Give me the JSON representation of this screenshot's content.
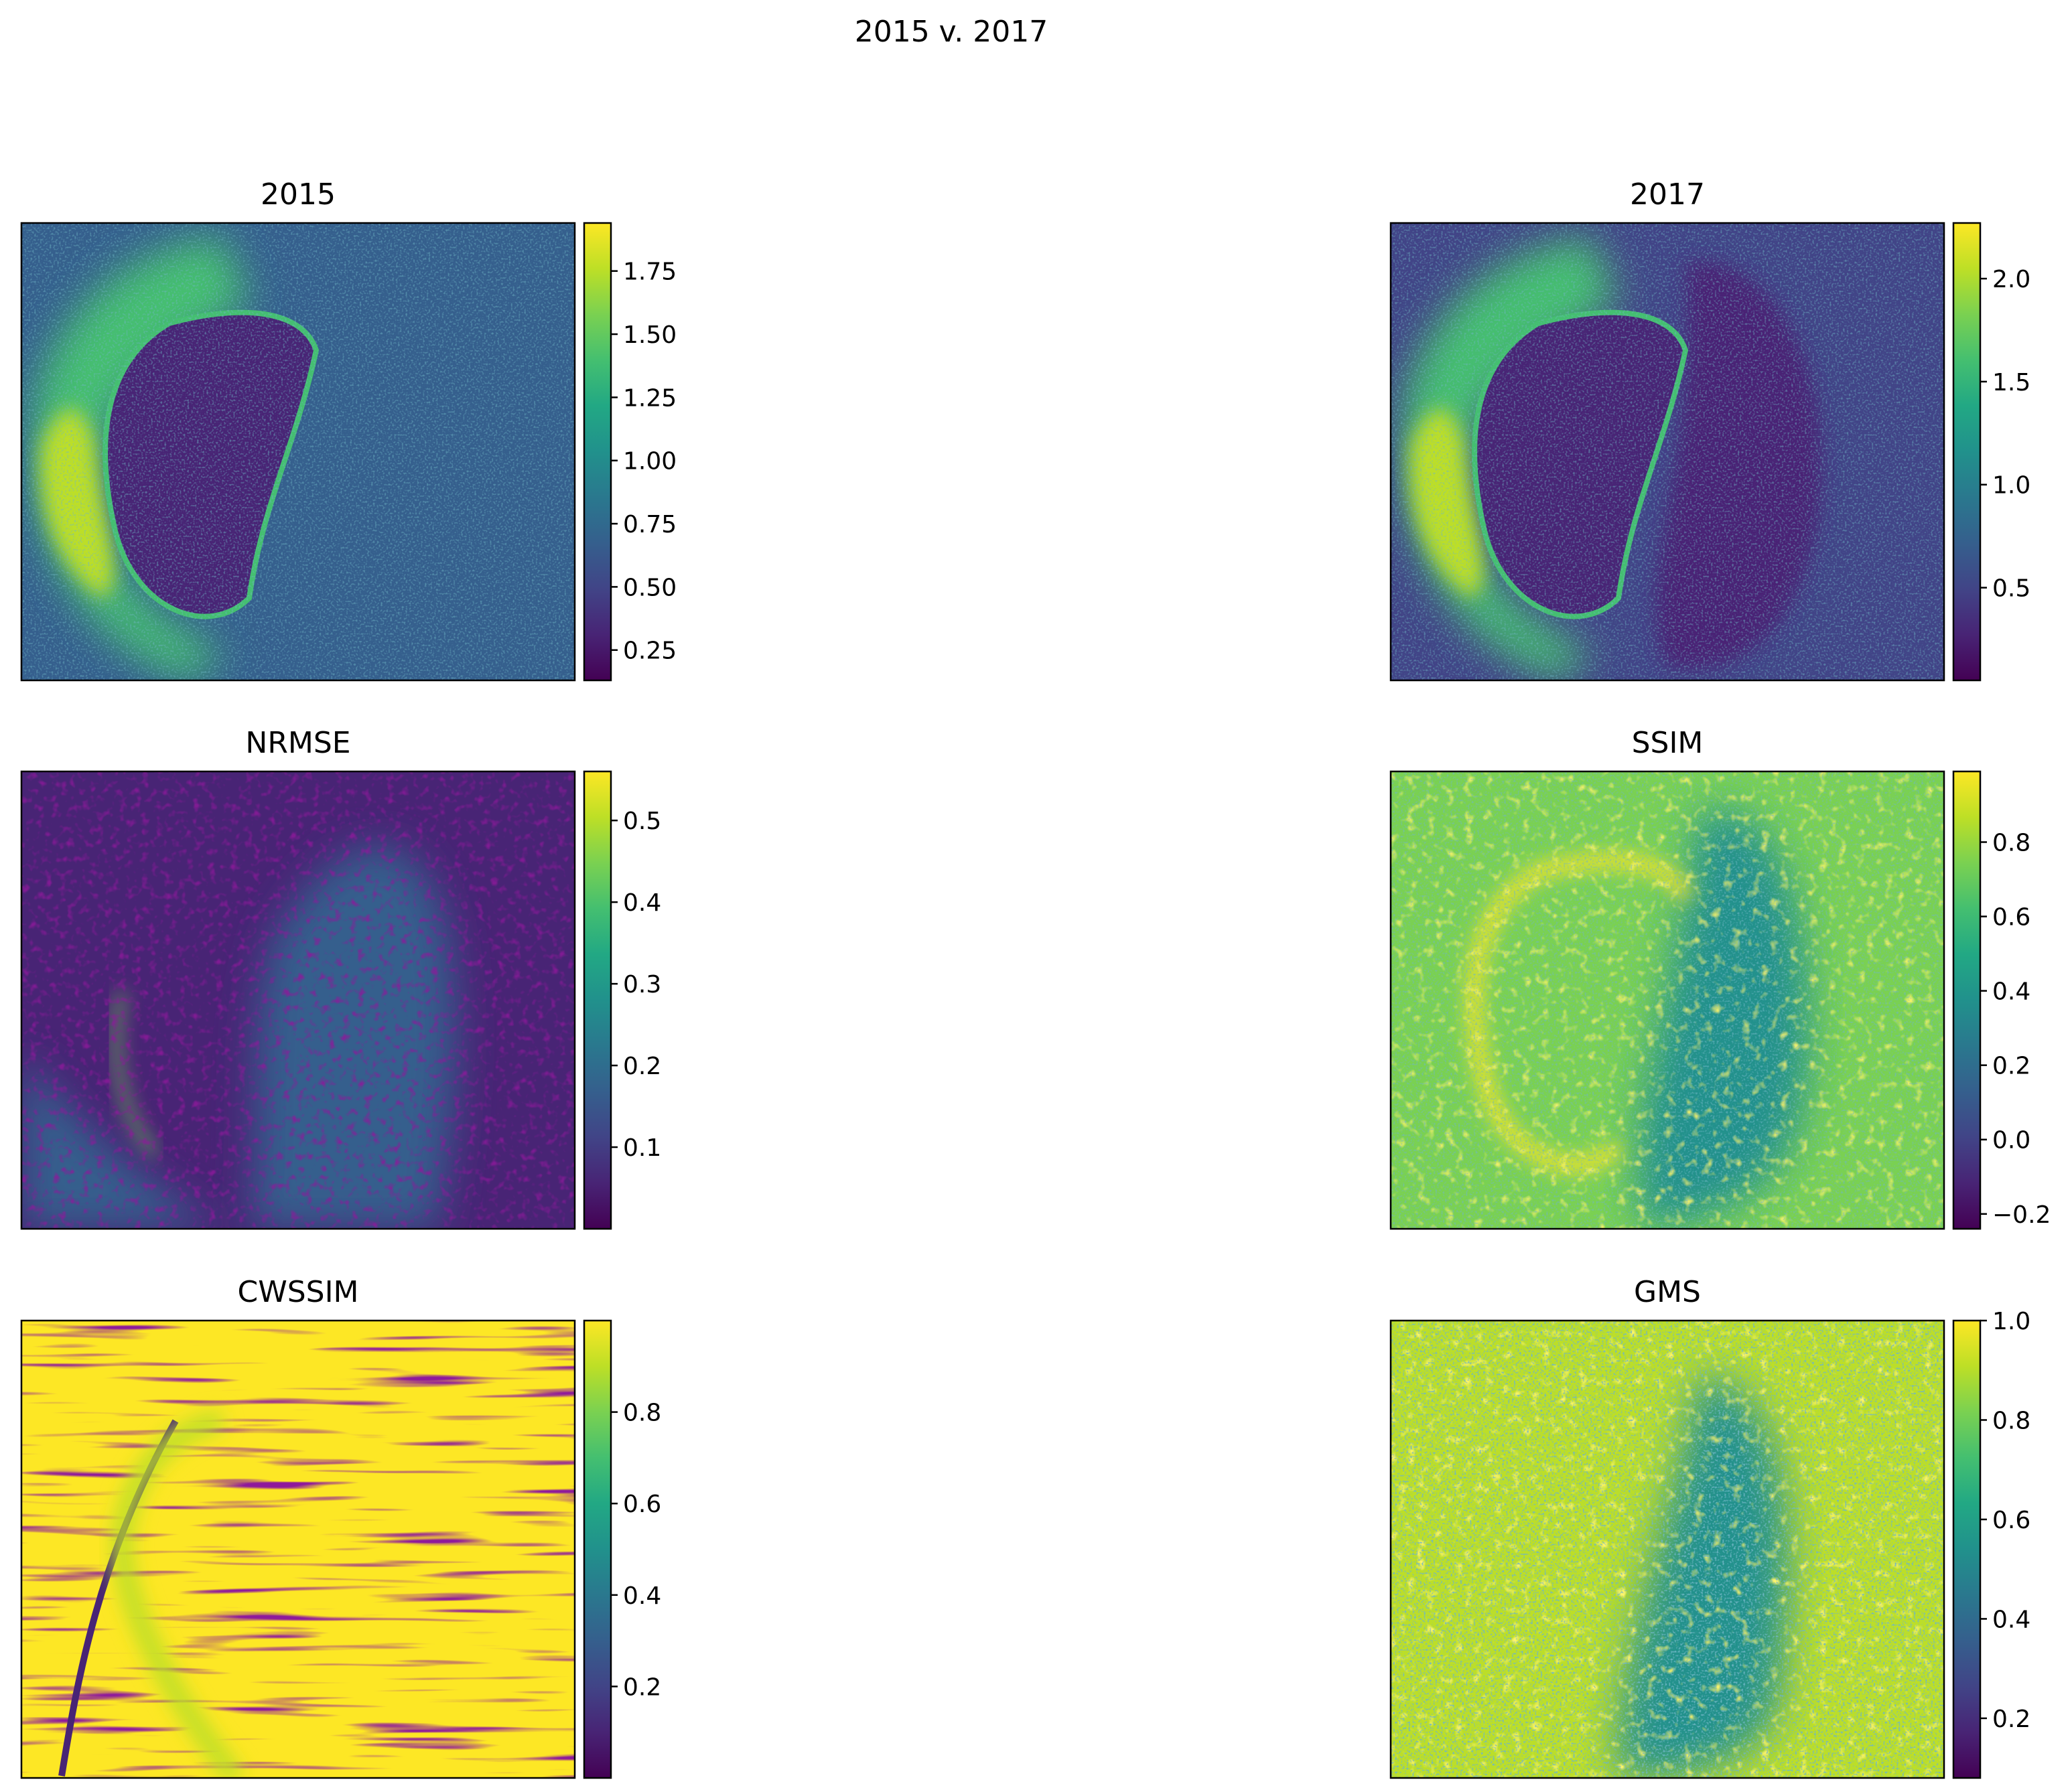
{
  "figure": {
    "title": "2015 v. 2017"
  },
  "chart_data": [
    {
      "type": "heatmap",
      "title": "2015",
      "colormap": "viridis",
      "vmin": 0.13,
      "vmax": 1.94,
      "colorbar_ticks": [
        0.25,
        0.5,
        0.75,
        1.0,
        1.25,
        1.5,
        1.75
      ],
      "colorbar_tick_labels": [
        "0.25",
        "0.50",
        "0.75",
        "1.00",
        "1.25",
        "1.50",
        "1.75"
      ],
      "axes_ticks": "hidden"
    },
    {
      "type": "heatmap",
      "title": "2017",
      "colormap": "viridis",
      "vmin": 0.05,
      "vmax": 2.27,
      "colorbar_ticks": [
        0.5,
        1.0,
        1.5,
        2.0
      ],
      "colorbar_tick_labels": [
        "0.5",
        "1.0",
        "1.5",
        "2.0"
      ],
      "axes_ticks": "hidden"
    },
    {
      "type": "heatmap",
      "title": "NRMSE",
      "colormap": "viridis",
      "vmin": 0.0,
      "vmax": 0.56,
      "colorbar_ticks": [
        0.1,
        0.2,
        0.3,
        0.4,
        0.5
      ],
      "colorbar_tick_labels": [
        "0.1",
        "0.2",
        "0.3",
        "0.4",
        "0.5"
      ],
      "axes_ticks": "hidden"
    },
    {
      "type": "heatmap",
      "title": "SSIM",
      "colormap": "viridis",
      "vmin": -0.24,
      "vmax": 0.99,
      "colorbar_ticks": [
        -0.2,
        0.0,
        0.2,
        0.4,
        0.6,
        0.8
      ],
      "colorbar_tick_labels": [
        "−0.2",
        "0.0",
        "0.2",
        "0.4",
        "0.6",
        "0.8"
      ],
      "axes_ticks": "hidden"
    },
    {
      "type": "heatmap",
      "title": "CWSSIM",
      "colormap": "viridis",
      "vmin": 0.0,
      "vmax": 1.0,
      "colorbar_ticks": [
        0.2,
        0.4,
        0.6,
        0.8
      ],
      "colorbar_tick_labels": [
        "0.2",
        "0.4",
        "0.6",
        "0.8"
      ],
      "axes_ticks": "hidden"
    },
    {
      "type": "heatmap",
      "title": "GMS",
      "colormap": "viridis",
      "vmin": 0.08,
      "vmax": 1.0,
      "colorbar_ticks": [
        0.2,
        0.4,
        0.6,
        0.8,
        1.0
      ],
      "colorbar_tick_labels": [
        "0.2",
        "0.4",
        "0.6",
        "0.8",
        "1.0"
      ],
      "axes_ticks": "hidden"
    }
  ]
}
